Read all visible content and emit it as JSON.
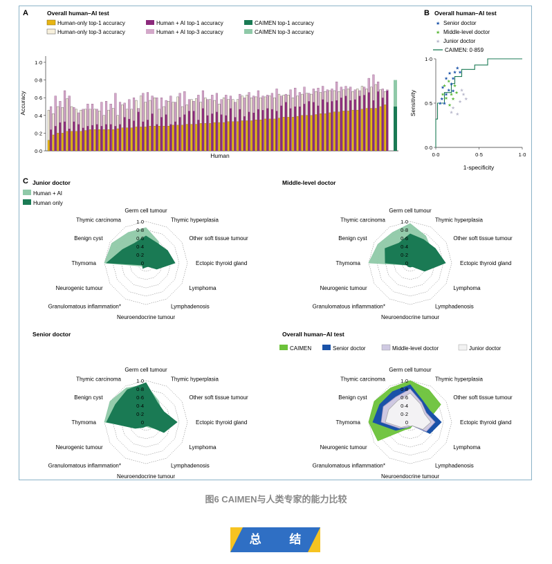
{
  "caption": "图6 CAIMEN与人类专家的能力比较",
  "banner": "总 结",
  "colors": {
    "frame": "#8ab2c7",
    "panel_label": "#1a1a1a"
  },
  "panel_a": {
    "letter": "A",
    "title": "Overall human–AI test",
    "legend": [
      "Human-only top-1 accuracy",
      "Human + AI top-1 accuracy",
      "CAIMEN top-1 accuracy",
      "Human-only top-3 accuracy",
      "Human + AI top-3 accuracy",
      "CAIMEN top-3 accuracy"
    ],
    "ylabel": "Accuracy",
    "xlabel": "Human",
    "yticks": [
      "0·0",
      "0·2",
      "0·4",
      "0·6",
      "0·8",
      "1·0"
    ]
  },
  "panel_b": {
    "letter": "B",
    "title": "Overall human–AI test",
    "legend": [
      "Senior doctor",
      "Middle-level doctor",
      "Junior doctor",
      "CAIMEN: 0·859"
    ],
    "ylabel": "Sensitivity",
    "xlabel": "1-specificity",
    "yticks": [
      "0·0",
      "0·5",
      "1·0"
    ],
    "xticks": [
      "0·0",
      "0·5",
      "1·0"
    ]
  },
  "panel_c": {
    "letter": "C",
    "axes": [
      "Germ cell tumour",
      "Thymic hyperplasia",
      "Other soft tissue tumour",
      "Ectopic thyroid gland",
      "Lymphoma",
      "Lymphadenosis",
      "Neuroendocrine tumour",
      "Granulomatous inflammation*",
      "Neurogenic tumour",
      "Thymoma",
      "Benign cyst",
      "Thymic carcinoma"
    ],
    "rticks": [
      "0",
      "0·2",
      "0·4",
      "0·6",
      "0·8",
      "1·0"
    ],
    "radars": [
      {
        "title": "Junior doctor",
        "legend": [
          "Human + AI",
          "Human only"
        ]
      },
      {
        "title": "Middle-level doctor",
        "legend": []
      },
      {
        "title": "Senior doctor",
        "legend": []
      },
      {
        "title": "Overall human–AI test",
        "legend": [
          "CAIMEN",
          "Senior doctor",
          "Middle-level doctor",
          "Junior doctor"
        ]
      }
    ]
  },
  "chart_data": [
    {
      "type": "bar",
      "panel": "A",
      "title": "Overall human–AI test",
      "xlabel": "Human",
      "ylabel": "Accuracy",
      "ylim": [
        0,
        1.0
      ],
      "series": [
        {
          "name": "Human-only top-1 accuracy",
          "values": [
            0.12,
            0.18,
            0.2,
            0.2,
            0.22,
            0.22,
            0.22,
            0.22,
            0.23,
            0.24,
            0.24,
            0.24,
            0.24,
            0.24,
            0.24,
            0.25,
            0.26,
            0.26,
            0.26,
            0.27,
            0.27,
            0.27,
            0.28,
            0.28,
            0.28,
            0.28,
            0.28,
            0.29,
            0.29,
            0.29,
            0.3,
            0.3,
            0.3,
            0.31,
            0.31,
            0.31,
            0.32,
            0.32,
            0.32,
            0.33,
            0.33,
            0.33,
            0.34,
            0.34,
            0.34,
            0.35,
            0.35,
            0.36,
            0.36,
            0.36,
            0.37,
            0.38,
            0.38,
            0.38,
            0.39,
            0.4,
            0.4,
            0.4,
            0.41,
            0.42,
            0.42,
            0.43,
            0.44,
            0.44,
            0.45,
            0.45,
            0.46,
            0.46,
            0.47,
            0.48,
            0.48,
            0.48,
            0.5,
            0.52
          ]
        },
        {
          "name": "Human + AI top-1 accuracy",
          "values": [
            0.24,
            0.28,
            0.32,
            0.33,
            0.25,
            0.33,
            0.3,
            0.26,
            0.28,
            0.29,
            0.3,
            0.28,
            0.3,
            0.3,
            0.28,
            0.3,
            0.38,
            0.36,
            0.34,
            0.44,
            0.33,
            0.35,
            0.42,
            0.3,
            0.38,
            0.41,
            0.3,
            0.33,
            0.38,
            0.41,
            0.45,
            0.45,
            0.35,
            0.48,
            0.4,
            0.42,
            0.44,
            0.41,
            0.4,
            0.48,
            0.38,
            0.47,
            0.39,
            0.44,
            0.43,
            0.47,
            0.46,
            0.48,
            0.47,
            0.45,
            0.51,
            0.55,
            0.48,
            0.5,
            0.5,
            0.53,
            0.56,
            0.55,
            0.51,
            0.58,
            0.55,
            0.56,
            0.57,
            0.6,
            0.62,
            0.57,
            0.58,
            0.62,
            0.63,
            0.66,
            0.57,
            0.67,
            0.6,
            0.68
          ]
        },
        {
          "name": "Human-only top-3 accuracy",
          "values": [
            0.46,
            0.42,
            0.5,
            0.49,
            0.59,
            0.5,
            0.47,
            0.46,
            0.47,
            0.47,
            0.47,
            0.45,
            0.4,
            0.46,
            0.48,
            0.4,
            0.52,
            0.47,
            0.47,
            0.57,
            0.62,
            0.55,
            0.57,
            0.6,
            0.47,
            0.5,
            0.56,
            0.55,
            0.61,
            0.5,
            0.52,
            0.58,
            0.59,
            0.55,
            0.6,
            0.58,
            0.57,
            0.53,
            0.6,
            0.58,
            0.58,
            0.58,
            0.62,
            0.63,
            0.6,
            0.61,
            0.6,
            0.61,
            0.62,
            0.6,
            0.64,
            0.63,
            0.63,
            0.6,
            0.62,
            0.64,
            0.65,
            0.64,
            0.67,
            0.66,
            0.67,
            0.68,
            0.68,
            0.67,
            0.69,
            0.7,
            0.67,
            0.7,
            0.73,
            0.7,
            0.72,
            0.75,
            0.69,
            0.67
          ]
        },
        {
          "name": "Human + AI top-3 accuracy",
          "values": [
            0.5,
            0.62,
            0.56,
            0.68,
            0.62,
            0.49,
            0.43,
            0.47,
            0.53,
            0.53,
            0.47,
            0.55,
            0.56,
            0.53,
            0.65,
            0.55,
            0.54,
            0.58,
            0.6,
            0.48,
            0.65,
            0.66,
            0.62,
            0.6,
            0.6,
            0.57,
            0.62,
            0.55,
            0.65,
            0.67,
            0.58,
            0.56,
            0.63,
            0.68,
            0.58,
            0.63,
            0.65,
            0.58,
            0.63,
            0.62,
            0.55,
            0.64,
            0.6,
            0.66,
            0.62,
            0.68,
            0.62,
            0.63,
            0.65,
            0.7,
            0.62,
            0.64,
            0.69,
            0.71,
            0.66,
            0.72,
            0.65,
            0.7,
            0.71,
            0.73,
            0.69,
            0.7,
            0.78,
            0.72,
            0.73,
            0.72,
            0.69,
            0.68,
            0.72,
            0.82,
            0.86,
            0.78,
            0.7,
            0.69
          ]
        },
        {
          "name": "CAIMEN top-1 accuracy",
          "values": [
            0.5
          ]
        },
        {
          "name": "CAIMEN top-3 accuracy",
          "values": [
            0.8
          ]
        }
      ]
    },
    {
      "type": "scatter",
      "panel": "B",
      "title": "Overall human–AI test",
      "xlabel": "1-specificity",
      "ylabel": "Sensitivity",
      "xlim": [
        0,
        1
      ],
      "ylim": [
        0,
        1
      ],
      "series": [
        {
          "name": "Senior doctor",
          "points": [
            [
              0.05,
              0.5
            ],
            [
              0.07,
              0.55
            ],
            [
              0.1,
              0.5
            ],
            [
              0.12,
              0.6
            ],
            [
              0.15,
              0.65
            ],
            [
              0.18,
              0.72
            ],
            [
              0.2,
              0.78
            ],
            [
              0.22,
              0.85
            ],
            [
              0.16,
              0.84
            ],
            [
              0.25,
              0.9
            ],
            [
              0.12,
              0.78
            ],
            [
              0.2,
              0.64
            ],
            [
              0.08,
              0.68
            ],
            [
              0.28,
              0.85
            ]
          ]
        },
        {
          "name": "Middle-level doctor",
          "points": [
            [
              0.08,
              0.6
            ],
            [
              0.12,
              0.56
            ],
            [
              0.15,
              0.75
            ],
            [
              0.18,
              0.6
            ],
            [
              0.2,
              0.55
            ],
            [
              0.1,
              0.7
            ],
            [
              0.22,
              0.7
            ],
            [
              0.16,
              0.48
            ],
            [
              0.24,
              0.62
            ]
          ]
        },
        {
          "name": "Junior doctor",
          "points": [
            [
              0.2,
              0.45
            ],
            [
              0.28,
              0.52
            ],
            [
              0.3,
              0.65
            ],
            [
              0.25,
              0.38
            ],
            [
              0.35,
              0.55
            ],
            [
              0.18,
              0.4
            ],
            [
              0.32,
              0.6
            ]
          ]
        },
        {
          "name": "CAIMEN: 0·859",
          "points": [
            [
              0,
              0
            ],
            [
              0,
              0.32
            ],
            [
              0.02,
              0.32
            ],
            [
              0.02,
              0.5
            ],
            [
              0.1,
              0.5
            ],
            [
              0.1,
              0.62
            ],
            [
              0.18,
              0.62
            ],
            [
              0.18,
              0.72
            ],
            [
              0.22,
              0.72
            ],
            [
              0.22,
              0.8
            ],
            [
              0.3,
              0.8
            ],
            [
              0.3,
              0.88
            ],
            [
              0.45,
              0.88
            ],
            [
              0.45,
              0.93
            ],
            [
              0.6,
              0.93
            ],
            [
              0.6,
              1.0
            ],
            [
              1.0,
              1.0
            ]
          ]
        }
      ]
    },
    {
      "type": "radar",
      "panel": "C",
      "title": "Junior doctor",
      "series": [
        {
          "name": "Human + AI",
          "values": [
            0.85,
            0.6,
            0.4,
            0.25,
            0.05,
            0.1,
            0.1,
            0.1,
            0.15,
            1.0,
            0.95,
            0.85
          ]
        },
        {
          "name": "Human only",
          "values": [
            0.65,
            0.55,
            0.6,
            0.7,
            0.3,
            0.1,
            0.1,
            0.15,
            0.1,
            0.95,
            0.65,
            0.55
          ]
        }
      ]
    },
    {
      "type": "radar",
      "panel": "C",
      "title": "Middle-level doctor",
      "series": [
        {
          "name": "Human + AI",
          "values": [
            0.95,
            0.75,
            0.6,
            0.6,
            0.25,
            0.1,
            0.1,
            0.1,
            0.1,
            1.0,
            0.9,
            0.85
          ]
        },
        {
          "name": "Human only",
          "values": [
            0.7,
            0.65,
            0.7,
            0.85,
            0.4,
            0.1,
            0.1,
            0.1,
            0.1,
            0.6,
            0.7,
            0.55
          ]
        }
      ]
    },
    {
      "type": "radar",
      "panel": "C",
      "title": "Senior doctor",
      "series": [
        {
          "name": "Human + AI",
          "values": [
            0.9,
            0.6,
            0.45,
            0.5,
            0.35,
            0.15,
            0.1,
            0.15,
            0.25,
            1.0,
            1.0,
            0.95
          ]
        },
        {
          "name": "Human only",
          "values": [
            0.95,
            0.55,
            0.5,
            0.75,
            0.5,
            0.1,
            0.1,
            0.15,
            0.3,
            0.95,
            0.85,
            0.9
          ]
        }
      ]
    },
    {
      "type": "radar",
      "panel": "C",
      "title": "Overall human–AI test",
      "series": [
        {
          "name": "CAIMEN",
          "values": [
            1.0,
            0.9,
            0.85,
            0.4,
            0.2,
            0.1,
            0.15,
            0.2,
            0.9,
            1.0,
            1.0,
            0.95
          ]
        },
        {
          "name": "Senior doctor",
          "values": [
            0.9,
            0.6,
            0.55,
            0.75,
            0.55,
            0.1,
            0.1,
            0.15,
            0.4,
            0.9,
            0.85,
            0.85
          ]
        },
        {
          "name": "Middle-level doctor",
          "values": [
            0.8,
            0.55,
            0.45,
            0.6,
            0.45,
            0.1,
            0.1,
            0.15,
            0.3,
            0.7,
            0.75,
            0.7
          ]
        },
        {
          "name": "Junior doctor",
          "values": [
            0.7,
            0.5,
            0.4,
            0.5,
            0.35,
            0.1,
            0.1,
            0.1,
            0.25,
            0.6,
            0.6,
            0.6
          ]
        }
      ]
    }
  ]
}
